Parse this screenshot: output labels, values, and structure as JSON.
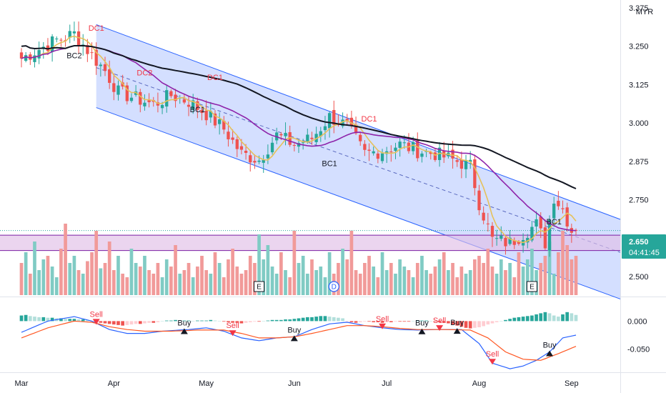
{
  "currency": "MYR",
  "price_badge": {
    "price": "2.650",
    "countdown": "04:41:45",
    "color": "#26a69a"
  },
  "colors": {
    "up": "#26a69a",
    "down": "#ef5350",
    "vol_up": "#80cbc4",
    "vol_down": "#f19a99",
    "ma_fast": "#e6c15a",
    "ma_mid": "#8e24aa",
    "ma_slow": "#131722",
    "channel_fill": "#ccd9ff",
    "channel_line": "#2962ff",
    "zone_fill": "#e1bee7",
    "zone_line": "#7b1fa2",
    "macd_line": "#2962ff",
    "signal_line": "#ff5722",
    "sell_marker": "#f23645",
    "buy_marker": "#131722"
  },
  "chart_data": [
    {
      "type": "candlestick",
      "title": "",
      "currency": "MYR",
      "x_range": [
        "Mar",
        "Sep"
      ],
      "x_tick_labels": [
        {
          "label": "Mar",
          "bar": 0
        },
        {
          "label": "Apr",
          "bar": 21
        },
        {
          "label": "May",
          "bar": 42
        },
        {
          "label": "Jun",
          "bar": 62
        },
        {
          "label": "Jul",
          "bar": 83
        },
        {
          "label": "Aug",
          "bar": 104
        },
        {
          "label": "Sep",
          "bar": 125
        }
      ],
      "bar_count": 127,
      "ylim": [
        2.44,
        3.4
      ],
      "y_ticks": [
        3.375,
        3.25,
        3.125,
        3.0,
        2.875,
        2.75,
        2.5
      ],
      "y_tick_labels": [
        "3.375",
        "3.250",
        "3.125",
        "3.000",
        "2.875",
        "2.750",
        "2.500"
      ],
      "last_price": 2.65,
      "close_keypoints": [
        [
          0,
          3.21
        ],
        [
          4,
          3.24
        ],
        [
          8,
          3.27
        ],
        [
          12,
          3.29
        ],
        [
          16,
          3.22
        ],
        [
          19,
          3.17
        ],
        [
          22,
          3.1
        ],
        [
          26,
          3.08
        ],
        [
          30,
          3.06
        ],
        [
          34,
          3.09
        ],
        [
          38,
          3.07
        ],
        [
          42,
          3.03
        ],
        [
          46,
          2.98
        ],
        [
          50,
          2.9
        ],
        [
          54,
          2.88
        ],
        [
          58,
          2.96
        ],
        [
          62,
          2.93
        ],
        [
          66,
          2.95
        ],
        [
          70,
          3.02
        ],
        [
          74,
          2.99
        ],
        [
          78,
          2.9
        ],
        [
          82,
          2.91
        ],
        [
          86,
          2.93
        ],
        [
          90,
          2.91
        ],
        [
          94,
          2.9
        ],
        [
          98,
          2.88
        ],
        [
          102,
          2.86
        ],
        [
          104,
          2.74
        ],
        [
          107,
          2.62
        ],
        [
          111,
          2.61
        ],
        [
          114,
          2.64
        ],
        [
          117,
          2.67
        ],
        [
          119,
          2.61
        ],
        [
          121,
          2.76
        ],
        [
          123,
          2.72
        ],
        [
          125,
          2.65
        ],
        [
          126,
          2.65
        ]
      ],
      "moving_averages": [
        {
          "name": "",
          "period": 5,
          "color": "#e6c15a"
        },
        {
          "name": "",
          "period": 20,
          "color": "#8e24aa"
        },
        {
          "name": "",
          "period": 50,
          "color": "#131722"
        }
      ],
      "regression_channel": {
        "start_bar": 17,
        "end_bar": 126,
        "upper": [
          3.32,
          2.74
        ],
        "mid": [
          3.18,
          2.63
        ],
        "lower": [
          3.05,
          2.48
        ]
      },
      "zone": {
        "top": 2.635,
        "bottom": 2.585
      },
      "annotations": [
        {
          "label": "BC2",
          "bar": 12,
          "price": 3.21,
          "color": "#131722"
        },
        {
          "label": "DC1",
          "bar": 17,
          "price": 3.3,
          "color": "#f23645"
        },
        {
          "label": "DC2",
          "bar": 28,
          "price": 3.155,
          "color": "#f23645"
        },
        {
          "label": "BC1",
          "bar": 40,
          "price": 3.035,
          "color": "#131722"
        },
        {
          "label": "DC1",
          "bar": 44,
          "price": 3.14,
          "color": "#f23645"
        },
        {
          "label": "BC1",
          "bar": 70,
          "price": 2.86,
          "color": "#131722"
        },
        {
          "label": "DC1",
          "bar": 79,
          "price": 3.005,
          "color": "#f23645"
        },
        {
          "label": "BC1",
          "bar": 121,
          "price": 2.67,
          "color": "#131722"
        }
      ],
      "event_badges": [
        {
          "label": "E",
          "bar": 54
        },
        {
          "label": "D",
          "bar": 71
        },
        {
          "label": "E",
          "bar": 116
        }
      ]
    },
    {
      "type": "bar",
      "title": "",
      "series": [
        {
          "name": "",
          "values": [
            18,
            24,
            12,
            30,
            14,
            20,
            22,
            16,
            10,
            26,
            40,
            18,
            22,
            14,
            12,
            19,
            24,
            36,
            15,
            18,
            30,
            14,
            22,
            12,
            10,
            26,
            18,
            16,
            22,
            14,
            12,
            18,
            10,
            20,
            16,
            28,
            12,
            14,
            18,
            10,
            16,
            22,
            14,
            12,
            24,
            18,
            10,
            20,
            26,
            16,
            12,
            14,
            22,
            18,
            34,
            20,
            28,
            16,
            12,
            24,
            14,
            10,
            36,
            18,
            22,
            12,
            20,
            14,
            16,
            10,
            24,
            12,
            18,
            26,
            20,
            36,
            14,
            12,
            18,
            22,
            16,
            10,
            24,
            14,
            18,
            12,
            20,
            16,
            14,
            10,
            18,
            22,
            14,
            12,
            16,
            20,
            24,
            14,
            18,
            10,
            16,
            12,
            14,
            20,
            22,
            18,
            26,
            16,
            12,
            20,
            14,
            18,
            10,
            24,
            16,
            20,
            26,
            14,
            18,
            22,
            30,
            12,
            24,
            36,
            28,
            20,
            22
          ]
        }
      ]
    },
    {
      "type": "line",
      "title": "",
      "ylim": [
        -0.09,
        0.04
      ],
      "y_ticks": [
        0.0,
        -0.05
      ],
      "y_tick_labels": [
        "0.000",
        "-0.050"
      ],
      "macd_keypoints": [
        [
          0,
          -0.02
        ],
        [
          6,
          0.0
        ],
        [
          12,
          0.008
        ],
        [
          16,
          0.0
        ],
        [
          20,
          -0.015
        ],
        [
          24,
          -0.022
        ],
        [
          28,
          -0.022
        ],
        [
          32,
          -0.018
        ],
        [
          38,
          -0.015
        ],
        [
          42,
          -0.012
        ],
        [
          46,
          -0.018
        ],
        [
          50,
          -0.03
        ],
        [
          54,
          -0.035
        ],
        [
          58,
          -0.03
        ],
        [
          62,
          -0.028
        ],
        [
          66,
          -0.015
        ],
        [
          70,
          -0.005
        ],
        [
          74,
          -0.002
        ],
        [
          78,
          -0.008
        ],
        [
          82,
          -0.012
        ],
        [
          86,
          -0.015
        ],
        [
          90,
          -0.016
        ],
        [
          94,
          -0.015
        ],
        [
          100,
          -0.015
        ],
        [
          104,
          -0.04
        ],
        [
          107,
          -0.075
        ],
        [
          111,
          -0.085
        ],
        [
          114,
          -0.08
        ],
        [
          117,
          -0.07
        ],
        [
          120,
          -0.055
        ],
        [
          123,
          -0.03
        ],
        [
          126,
          -0.025
        ]
      ],
      "signal_keypoints": [
        [
          0,
          -0.03
        ],
        [
          6,
          -0.012
        ],
        [
          12,
          0.0
        ],
        [
          16,
          -0.002
        ],
        [
          20,
          -0.01
        ],
        [
          24,
          -0.015
        ],
        [
          28,
          -0.018
        ],
        [
          34,
          -0.018
        ],
        [
          40,
          -0.016
        ],
        [
          46,
          -0.016
        ],
        [
          50,
          -0.022
        ],
        [
          54,
          -0.03
        ],
        [
          58,
          -0.03
        ],
        [
          62,
          -0.028
        ],
        [
          66,
          -0.022
        ],
        [
          70,
          -0.015
        ],
        [
          74,
          -0.008
        ],
        [
          78,
          -0.008
        ],
        [
          82,
          -0.01
        ],
        [
          86,
          -0.013
        ],
        [
          90,
          -0.015
        ],
        [
          96,
          -0.015
        ],
        [
          102,
          -0.016
        ],
        [
          106,
          -0.03
        ],
        [
          110,
          -0.055
        ],
        [
          114,
          -0.068
        ],
        [
          118,
          -0.07
        ],
        [
          122,
          -0.058
        ],
        [
          126,
          -0.045
        ]
      ],
      "histogram": [
        10,
        11,
        9,
        8,
        7,
        7,
        6,
        6,
        5,
        5,
        4,
        4,
        4,
        3,
        3,
        2,
        -1,
        -2,
        -3,
        -4,
        -5,
        -6,
        -7,
        -8,
        -7,
        -6,
        -5,
        -5,
        -4,
        -3,
        -3,
        -2,
        0,
        1,
        1,
        2,
        1,
        1,
        1,
        0,
        1,
        1,
        1,
        2,
        1,
        0,
        -1,
        -2,
        -3,
        -3,
        -4,
        -3,
        -2,
        -1,
        -1,
        0,
        1,
        2,
        2,
        2,
        3,
        3,
        4,
        5,
        6,
        7,
        7,
        8,
        9,
        9,
        8,
        7,
        6,
        5,
        -1,
        -2,
        -3,
        -2,
        -1,
        -1,
        -2,
        -2,
        -3,
        -2,
        -2,
        -1,
        -1,
        -1,
        -1,
        0,
        1,
        1,
        1,
        0,
        -1,
        -2,
        -3,
        -4,
        -6,
        -8,
        -10,
        -12,
        -13,
        -12,
        -11,
        -9,
        -6,
        -4,
        -2,
        0,
        2,
        4,
        6,
        7,
        8,
        9,
        10,
        12,
        14,
        16,
        14,
        10,
        8,
        12,
        16,
        14,
        11
      ],
      "signals": [
        {
          "label": "Sell",
          "bar": 17,
          "value": 0.0
        },
        {
          "label": "Buy",
          "bar": 37,
          "value": -0.023
        },
        {
          "label": "Sell",
          "bar": 48,
          "value": -0.018
        },
        {
          "label": "Buy",
          "bar": 62,
          "value": -0.031
        },
        {
          "label": "Sell",
          "bar": 82,
          "value": -0.012
        },
        {
          "label": "Buy",
          "bar": 91,
          "value": -0.015
        },
        {
          "label": "Sell",
          "bar": 95,
          "value": -0.015
        },
        {
          "label": "Buy",
          "bar": 99,
          "value": -0.015
        },
        {
          "label": "Sell",
          "bar": 107,
          "value": -0.016
        },
        {
          "label": "Buy",
          "bar": 120,
          "value": -0.07
        }
      ]
    }
  ]
}
